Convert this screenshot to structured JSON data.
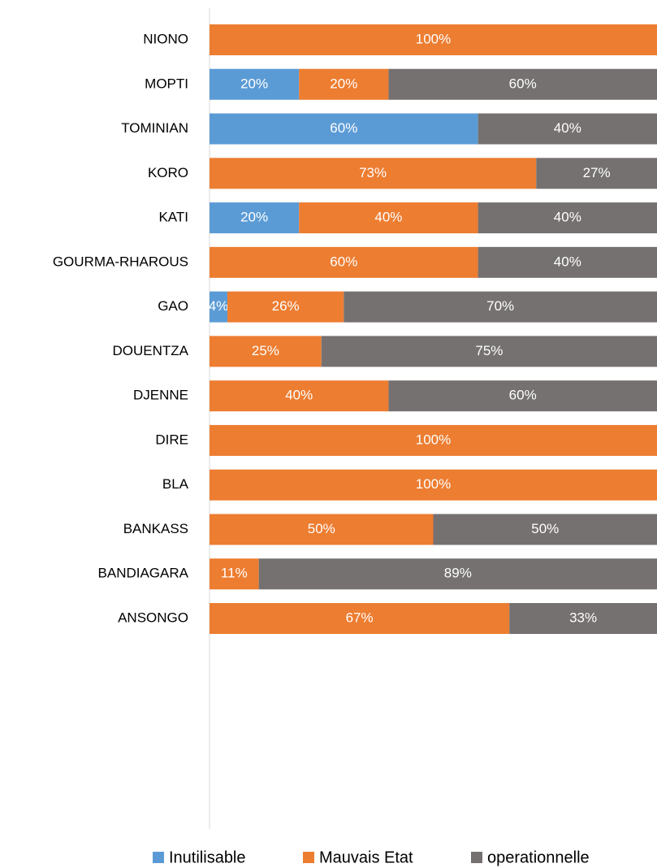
{
  "chart_data": {
    "type": "stacked-bar-horizontal",
    "categories": [
      "NIONO",
      "MOPTI",
      "TOMINIAN",
      "KORO",
      "KATI",
      "GOURMA-RHAROUS",
      "GAO",
      "DOUENTZA",
      "DJENNE",
      "DIRE",
      "BLA",
      "BANKASS",
      "BANDIAGARA",
      "ANSONGO"
    ],
    "xlim": [
      0,
      100
    ],
    "legend": "bottom",
    "series": [
      {
        "name": "Inutilisable",
        "color": "#5b9bd5",
        "values": [
          0,
          20,
          60,
          0,
          20,
          0,
          4,
          0,
          0,
          0,
          0,
          0,
          0,
          0
        ],
        "value_labels": [
          null,
          "20%",
          "60%",
          null,
          "20%",
          null,
          "4%",
          null,
          null,
          null,
          null,
          null,
          null,
          null
        ]
      },
      {
        "name": "Mauvais Etat",
        "color": "#ed7d31",
        "values": [
          100,
          20,
          0,
          73,
          40,
          60,
          26,
          25,
          40,
          100,
          100,
          50,
          11,
          67
        ],
        "value_labels": [
          "100%",
          "20%",
          null,
          "73%",
          "40%",
          "60%",
          "26%",
          "25%",
          "40%",
          "100%",
          "100%",
          "50%",
          "11%",
          "67%"
        ]
      },
      {
        "name": "operationnelle",
        "color": "#767171",
        "values": [
          0,
          60,
          40,
          27,
          40,
          40,
          70,
          75,
          60,
          0,
          0,
          50,
          89,
          33
        ],
        "value_labels": [
          null,
          "60%",
          "40%",
          "27%",
          "40%",
          "40%",
          "70%",
          "75%",
          "60%",
          null,
          null,
          "50%",
          "89%",
          "33%"
        ]
      }
    ]
  }
}
